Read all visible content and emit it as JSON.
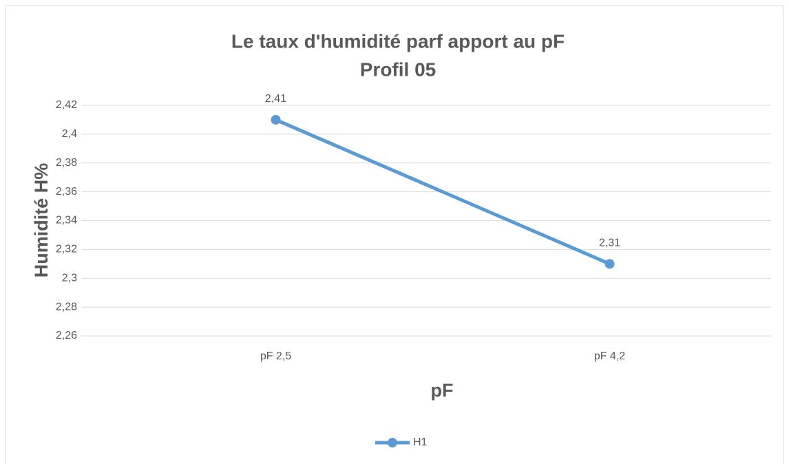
{
  "chart_data": {
    "type": "line",
    "title": "Le taux d'humidité parf apport au pF",
    "subtitle": "Profil 05",
    "x_label": "pF",
    "y_label": "Humidité H%",
    "categories": [
      "pF 2,5",
      "pF 4,2"
    ],
    "series": [
      {
        "name": "H1",
        "color": "#5b9bd5",
        "values": [
          2.41,
          2.31
        ],
        "value_labels": [
          "2,41",
          "2,31"
        ]
      }
    ],
    "ylim": [
      2.26,
      2.42
    ],
    "yticks": [
      {
        "value": 2.26,
        "label": "2,26"
      },
      {
        "value": 2.28,
        "label": "2,28"
      },
      {
        "value": 2.3,
        "label": "2,3"
      },
      {
        "value": 2.32,
        "label": "2,32"
      },
      {
        "value": 2.34,
        "label": "2,34"
      },
      {
        "value": 2.36,
        "label": "2,36"
      },
      {
        "value": 2.38,
        "label": "2,38"
      },
      {
        "value": 2.4,
        "label": "2,4"
      },
      {
        "value": 2.42,
        "label": "2,42"
      }
    ],
    "grid": true,
    "legend": "bottom"
  }
}
